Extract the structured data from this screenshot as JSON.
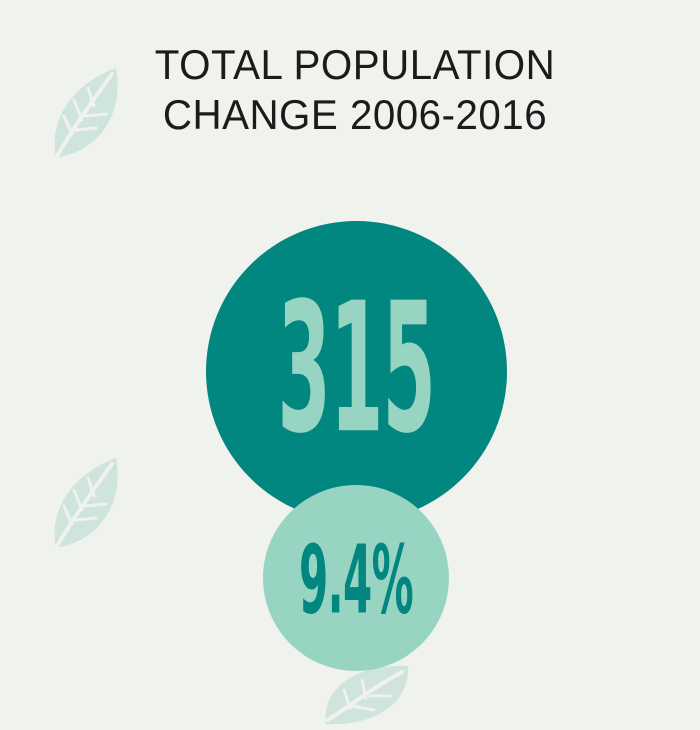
{
  "title": {
    "line1": "TOTAL POPULATION",
    "line2": "CHANGE 2006-2016"
  },
  "stats": {
    "population_change": "315",
    "percent_change": "9.4%"
  },
  "colors": {
    "background": "#f0f2ee",
    "primary_teal": "#028680",
    "light_teal": "#98d4c2",
    "leaf": "#cfe4dc",
    "text": "#1b1b1b"
  },
  "icons": [
    "leaf-icon"
  ]
}
